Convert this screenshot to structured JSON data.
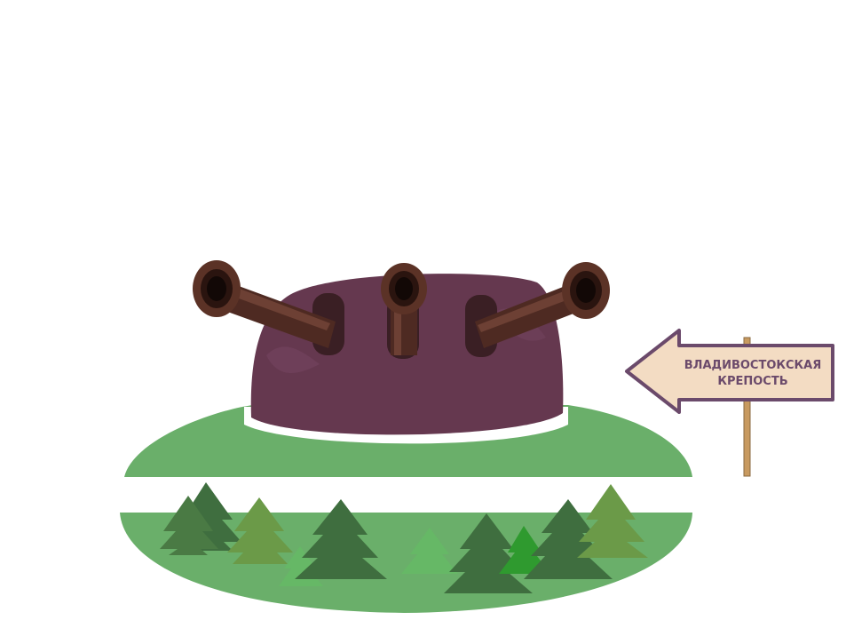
{
  "sign": {
    "line1": "ВЛАДИВОСТОКСКАЯ",
    "line2": "КРЕПОСТЬ"
  },
  "colors": {
    "turret": "#65384f",
    "barrel": "#4e2a22",
    "ground_light": "#6aaf6a",
    "ground_dark_tree": "#3f6e3f",
    "tree_olive": "#6b9a48",
    "tree_light": "#66b866",
    "tree_bright": "#2f9a2f",
    "sign_fill": "#f3dcc3",
    "sign_border": "#6b4a6b",
    "post": "#c89a60"
  },
  "icons": [
    "turret-illustration",
    "tree-icon",
    "signpost-arrow-icon"
  ]
}
